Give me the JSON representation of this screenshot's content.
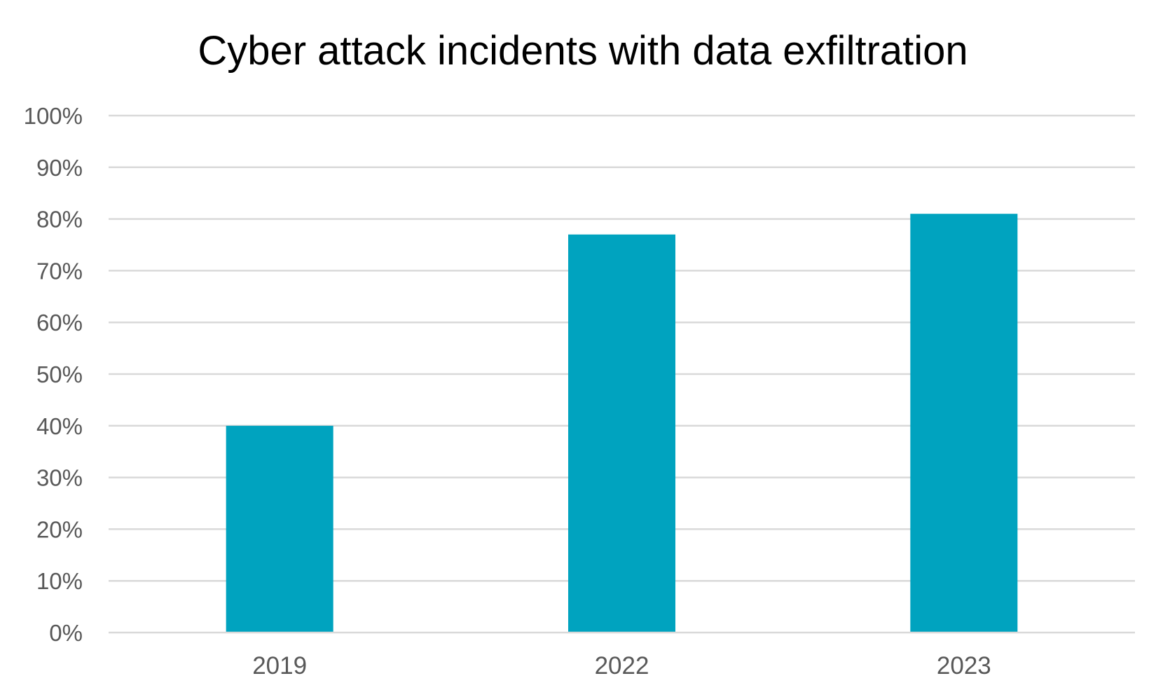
{
  "chart_data": {
    "type": "bar",
    "title": "Cyber attack incidents with data exfiltration",
    "xlabel": "",
    "ylabel": "",
    "categories": [
      "2019",
      "2022",
      "2023"
    ],
    "series": [
      {
        "values": [
          40,
          77,
          81
        ],
        "color": "#00a3bf"
      }
    ],
    "ylim": [
      0,
      100
    ],
    "yticks": [
      0,
      10,
      20,
      30,
      40,
      50,
      60,
      70,
      80,
      90,
      100
    ],
    "ytick_labels": [
      "0%",
      "10%",
      "20%",
      "30%",
      "40%",
      "50%",
      "60%",
      "70%",
      "80%",
      "90%",
      "100%"
    ],
    "grid": true,
    "legend": "none",
    "gridline_color": "#d9d9d9",
    "tick_label_color": "#595959"
  }
}
